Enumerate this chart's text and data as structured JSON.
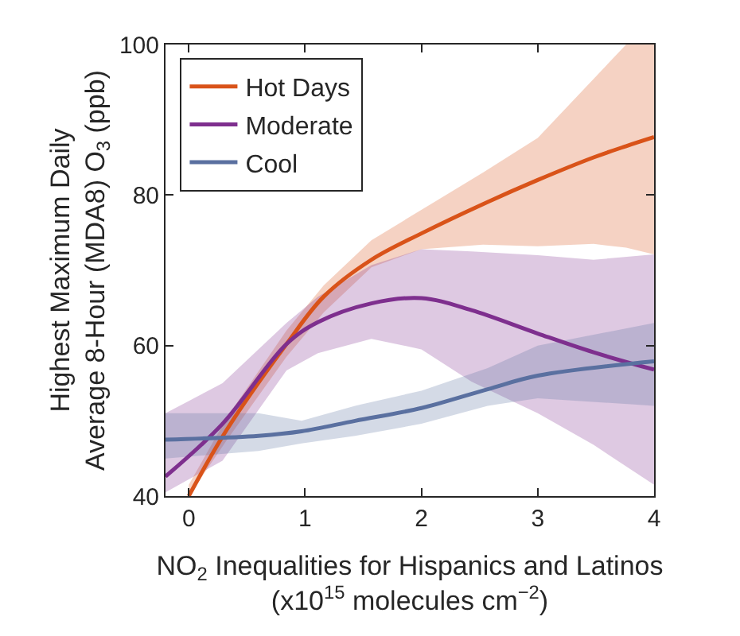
{
  "chart_data": {
    "type": "line",
    "xlabel": "NO$_{2}$ Inequalities for Hispanics and Latinos\n(x10$^{15}$ molecules cm$^{−2}$)",
    "ylabel": "Highest Maximum Daily\nAverage 8-Hour (MDA8) O$_{3}$ (ppb)",
    "xlim": [
      -0.2,
      4
    ],
    "xticks": [
      0,
      1,
      2,
      3,
      4
    ],
    "ylim": [
      40,
      100
    ],
    "yticks": [
      40,
      60,
      80,
      100
    ],
    "legend": "top left",
    "marker": "none",
    "line_style": "solid",
    "series": [
      {
        "name": "Hot Days",
        "color": "#d95319",
        "x": [
          0,
          0.33,
          0.84,
          1.16,
          1.57,
          2.0,
          2.53,
          3.0,
          3.48,
          3.76,
          4.0
        ],
        "values": [
          40,
          48.9,
          60.2,
          66.5,
          71.4,
          74.9,
          78.8,
          82.0,
          85.0,
          86.5,
          87.7
        ],
        "lower": [
          40,
          47.5,
          58.5,
          64.4,
          70.4,
          72.8,
          73.4,
          73.2,
          73.5,
          73.0,
          72.1
        ],
        "upper": [
          41.5,
          50.5,
          62.0,
          68.0,
          74.0,
          78.0,
          83.0,
          87.6,
          95.3,
          100,
          100
        ]
      },
      {
        "name": "Moderate",
        "color": "#7e2f8e",
        "x": [
          -0.2,
          0.29,
          0.84,
          1.11,
          1.57,
          2.0,
          2.43,
          3.0,
          3.48,
          4.0
        ],
        "values": [
          42.6,
          49.6,
          60.2,
          63.1,
          65.6,
          66.3,
          64.7,
          61.6,
          59.1,
          56.8
        ],
        "lower": [
          40.5,
          44.7,
          56.7,
          59.0,
          60.9,
          59.5,
          55.2,
          51.0,
          46.8,
          41.5
        ],
        "upper": [
          51.0,
          55.0,
          63.0,
          66.5,
          70.7,
          72.8,
          72.5,
          72.0,
          71.4,
          72.1
        ]
      },
      {
        "name": "Cool",
        "color": "#5a70a0",
        "x": [
          -0.2,
          0.6,
          0.97,
          1.43,
          2.0,
          2.57,
          3.0,
          4.0
        ],
        "values": [
          47.5,
          48.0,
          48.6,
          50.0,
          51.7,
          54.2,
          56.0,
          57.9
        ],
        "lower": [
          45,
          46,
          47,
          48,
          49.6,
          52,
          53,
          52
        ],
        "upper": [
          51,
          51,
          50,
          52,
          54,
          57,
          60,
          63
        ]
      }
    ]
  }
}
